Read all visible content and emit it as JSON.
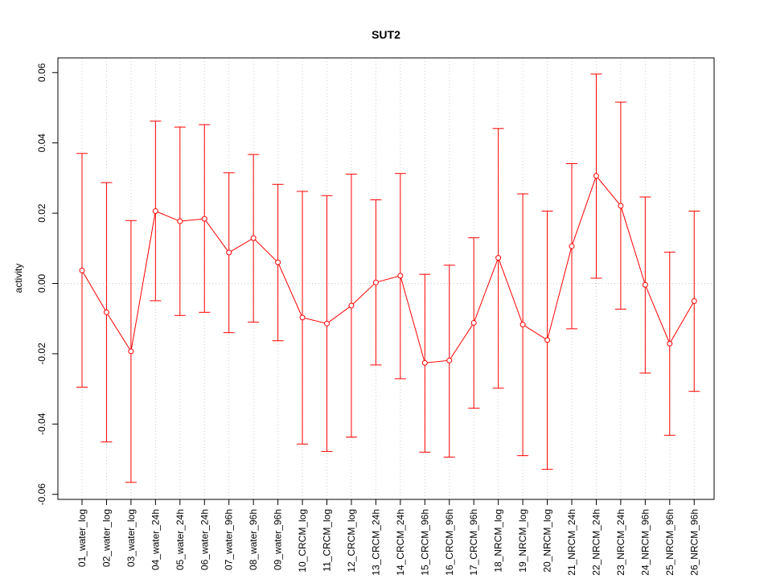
{
  "chart_data": {
    "type": "line",
    "title": "SUT2",
    "xlabel": "",
    "ylabel": "activity",
    "ylim": [
      -0.062,
      0.064
    ],
    "yticks": [
      "-0.06",
      "-0.04",
      "-0.02",
      "0.00",
      "0.02",
      "0.04",
      "0.06"
    ],
    "ytick_values": [
      -0.06,
      -0.04,
      -0.02,
      0.0,
      0.02,
      0.04,
      0.06
    ],
    "grid": true,
    "color": "#ff0000",
    "categories": [
      "01_water_log",
      "02_water_log",
      "03_water_log",
      "04_water_24h",
      "05_water_24h",
      "06_water_24h",
      "07_water_96h",
      "08_water_96h",
      "09_water_96h",
      "10_CRCM_log",
      "11_CRCM_log",
      "12_CRCM_log",
      "13_CRCM_24h",
      "14_CRCM_24h",
      "15_CRCM_96h",
      "16_CRCM_96h",
      "17_CRCM_96h",
      "18_NRCM_log",
      "19_NRCM_log",
      "20_NRCM_log",
      "21_NRCM_24h",
      "22_NRCM_24h",
      "23_NRCM_24h",
      "24_NRCM_96h",
      "25_NRCM_96h",
      "26_NRCM_96h"
    ],
    "values": [
      0.0037,
      -0.0082,
      -0.0193,
      0.0206,
      0.0177,
      0.0184,
      0.0088,
      0.0129,
      0.006,
      -0.0097,
      -0.0114,
      -0.0063,
      0.0003,
      0.0022,
      -0.0226,
      -0.0219,
      -0.0112,
      0.0073,
      -0.0117,
      -0.0161,
      0.0106,
      0.0306,
      0.0221,
      -0.0004,
      -0.0171,
      -0.005
    ],
    "upper": [
      0.037,
      0.0287,
      0.0179,
      0.0462,
      0.0445,
      0.0452,
      0.0315,
      0.0367,
      0.0282,
      0.0262,
      0.025,
      0.0311,
      0.0238,
      0.0313,
      0.0026,
      0.0052,
      0.013,
      0.0441,
      0.0255,
      0.0206,
      0.0341,
      0.0596,
      0.0516,
      0.0246,
      0.0089,
      0.0206
    ],
    "lower": [
      -0.0295,
      -0.0451,
      -0.0566,
      -0.0049,
      -0.0091,
      -0.0082,
      -0.014,
      -0.011,
      -0.0163,
      -0.0457,
      -0.0478,
      -0.0437,
      -0.0232,
      -0.0271,
      -0.048,
      -0.0494,
      -0.0355,
      -0.0298,
      -0.049,
      -0.0529,
      -0.0129,
      0.0015,
      -0.0073,
      -0.0255,
      -0.0432,
      -0.0307
    ]
  }
}
